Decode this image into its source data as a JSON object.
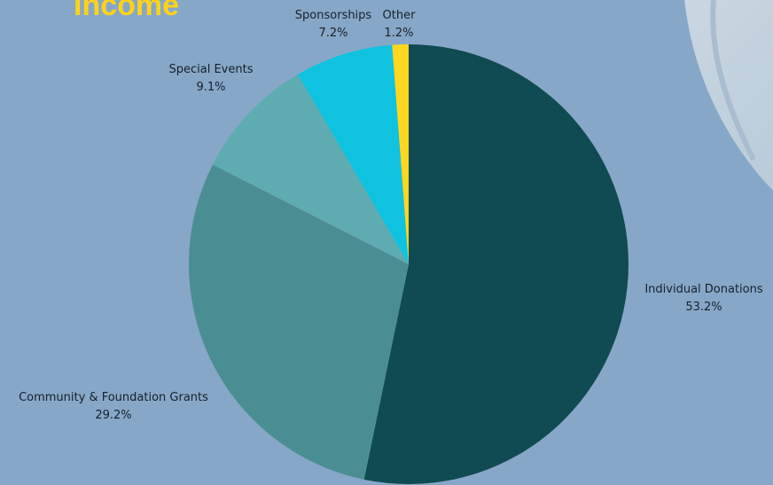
{
  "title": "Income",
  "colors": {
    "background": "#87a7c8",
    "title": "#ffd21a",
    "label_text": "#15202b"
  },
  "chart_data": {
    "type": "pie",
    "title": "Income",
    "slices": [
      {
        "label": "Individual Donations",
        "value": 53.2,
        "percent_label": "53.2%",
        "color": "#104a52"
      },
      {
        "label": "Community & Foundation Grants",
        "value": 29.2,
        "percent_label": "29.2%",
        "color": "#4a8e93"
      },
      {
        "label": "Special Events",
        "value": 9.1,
        "percent_label": "9.1%",
        "color": "#5eabb2"
      },
      {
        "label": "Sponsorships",
        "value": 7.2,
        "percent_label": "7.2%",
        "color": "#0fc3e0"
      },
      {
        "label": "Other",
        "value": 1.2,
        "percent_label": "1.2%",
        "color": "#ffd71e"
      }
    ],
    "start_angle": "12 o'clock",
    "direction": "clockwise",
    "legend": "none (labels placed beside slices)"
  }
}
